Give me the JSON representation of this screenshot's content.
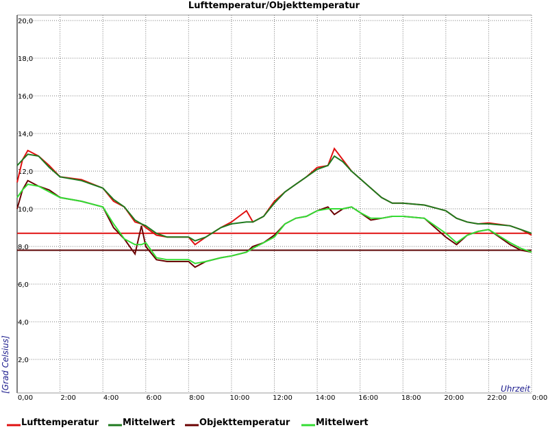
{
  "chart_data": {
    "type": "line",
    "title": "Lufttemperatur/Objekttemperatur",
    "y_label": "[Grad Celsius]",
    "x_label": "Uhrzeit",
    "grid": true,
    "xlim": [
      0,
      24
    ],
    "ylim": [
      0,
      20
    ],
    "xticks": [
      {
        "value": 0,
        "label": "0,00"
      },
      {
        "value": 2,
        "label": "2:00"
      },
      {
        "value": 4,
        "label": "4:00"
      },
      {
        "value": 6,
        "label": "6:00"
      },
      {
        "value": 8,
        "label": "8:00"
      },
      {
        "value": 10,
        "label": "10:00"
      },
      {
        "value": 12,
        "label": "12:00"
      },
      {
        "value": 14,
        "label": "14:00"
      },
      {
        "value": 16,
        "label": "16:00"
      },
      {
        "value": 18,
        "label": "18:00"
      },
      {
        "value": 20,
        "label": "20:00"
      },
      {
        "value": 22,
        "label": "22:00"
      },
      {
        "value": 24,
        "label": "0:00"
      }
    ],
    "yticks": [
      {
        "value": 2,
        "label": "2,0"
      },
      {
        "value": 4,
        "label": "4,0"
      },
      {
        "value": 6,
        "label": "6,0"
      },
      {
        "value": 8,
        "label": "8,0"
      },
      {
        "value": 10,
        "label": "10,0"
      },
      {
        "value": 12,
        "label": "12,0"
      },
      {
        "value": 14,
        "label": "14,0"
      },
      {
        "value": 16,
        "label": "16,0"
      },
      {
        "value": 18,
        "label": "18,0"
      },
      {
        "value": 20,
        "label": "20,0"
      }
    ],
    "reference_lines": [
      {
        "value": 8.7,
        "color": "#e01010"
      },
      {
        "value": 7.8,
        "color": "#5a0000"
      }
    ],
    "x": [
      0,
      0.25,
      0.5,
      1,
      1.5,
      2,
      3,
      4,
      4.5,
      5,
      5.5,
      5.8,
      6,
      6.5,
      7,
      8,
      8.3,
      8.8,
      9.5,
      10,
      10.7,
      11,
      11.5,
      12,
      12.5,
      13,
      13.5,
      14,
      14.5,
      14.8,
      15.2,
      15.6,
      16,
      16.5,
      17,
      17.5,
      18,
      19,
      20,
      20.5,
      21,
      21.5,
      22,
      23,
      23.5,
      24
    ],
    "series": [
      {
        "name": "Lufttemperatur",
        "color": "#e01010",
        "values": [
          11.4,
          12.6,
          13.1,
          12.8,
          12.3,
          11.7,
          11.55,
          11.1,
          10.4,
          10.1,
          9.3,
          9.2,
          9.0,
          8.6,
          8.5,
          8.5,
          8.1,
          8.5,
          9.0,
          9.3,
          9.9,
          9.3,
          9.6,
          10.4,
          10.9,
          11.3,
          11.7,
          12.2,
          12.3,
          13.2,
          12.6,
          12.0,
          11.6,
          11.1,
          10.6,
          10.3,
          10.3,
          10.2,
          9.9,
          9.5,
          9.3,
          9.2,
          9.25,
          9.1,
          8.9,
          8.6
        ]
      },
      {
        "name": "Mittelwert",
        "color": "#1e7a1e",
        "values": [
          12.3,
          12.6,
          12.9,
          12.8,
          12.2,
          11.7,
          11.5,
          11.1,
          10.5,
          10.1,
          9.4,
          9.2,
          9.1,
          8.7,
          8.5,
          8.5,
          8.3,
          8.5,
          9.0,
          9.2,
          9.3,
          9.3,
          9.6,
          10.3,
          10.9,
          11.3,
          11.7,
          12.1,
          12.3,
          12.8,
          12.5,
          12.0,
          11.6,
          11.1,
          10.6,
          10.3,
          10.3,
          10.2,
          9.9,
          9.5,
          9.3,
          9.2,
          9.2,
          9.1,
          8.9,
          8.7
        ]
      },
      {
        "name": "Objekttemperatur",
        "color": "#6a0000",
        "values": [
          10.0,
          11.0,
          11.5,
          11.2,
          11.0,
          10.6,
          10.4,
          10.1,
          9.0,
          8.4,
          7.6,
          9.1,
          8.0,
          7.3,
          7.2,
          7.2,
          6.9,
          7.2,
          7.4,
          7.5,
          7.7,
          8.0,
          8.2,
          8.6,
          9.2,
          9.5,
          9.6,
          9.9,
          10.1,
          9.7,
          10.0,
          10.1,
          9.8,
          9.4,
          9.5,
          9.6,
          9.6,
          9.5,
          8.5,
          8.1,
          8.6,
          8.8,
          8.9,
          8.1,
          7.8,
          7.7
        ]
      },
      {
        "name": "Mittelwert",
        "color": "#33dd33",
        "values": [
          10.6,
          11.0,
          11.3,
          11.2,
          10.9,
          10.6,
          10.4,
          10.1,
          9.2,
          8.4,
          8.1,
          8.1,
          8.2,
          7.4,
          7.3,
          7.3,
          7.1,
          7.2,
          7.4,
          7.5,
          7.7,
          7.9,
          8.2,
          8.5,
          9.2,
          9.5,
          9.6,
          9.9,
          10.0,
          10.0,
          10.0,
          10.1,
          9.8,
          9.5,
          9.5,
          9.6,
          9.6,
          9.5,
          8.7,
          8.2,
          8.6,
          8.8,
          8.9,
          8.2,
          7.9,
          7.7
        ]
      }
    ]
  }
}
